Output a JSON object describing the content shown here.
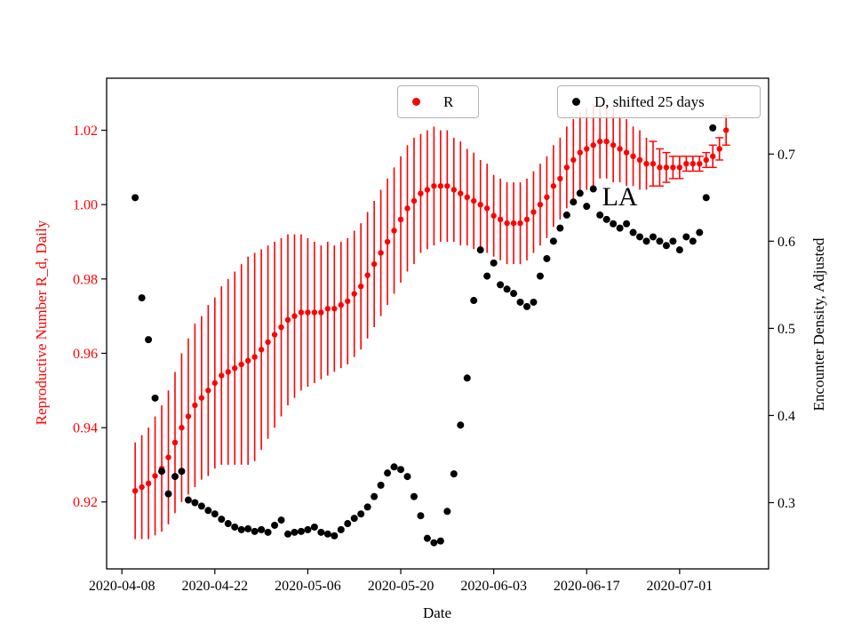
{
  "figure": {
    "background": "#ffffff"
  },
  "annotation_note": "LA",
  "chart_data": {
    "type": "scatter",
    "title": "",
    "xlabel": "Date",
    "grid": false,
    "x_tick_labels": [
      "2020-04-08",
      "2020-04-22",
      "2020-05-06",
      "2020-05-20",
      "2020-06-03",
      "2020-06-17",
      "2020-07-01"
    ],
    "x_tick_days": [
      0,
      14,
      28,
      42,
      56,
      70,
      84
    ],
    "x_range_days": [
      -2.3,
      97.4
    ],
    "left_axis": {
      "label": "Reproductive Number R_d, Daily",
      "color": "#ff0000",
      "tick_labels": [
        "0.92",
        "0.94",
        "0.96",
        "0.98",
        "1.00",
        "1.02"
      ],
      "tick_values": [
        0.92,
        0.94,
        0.96,
        0.98,
        1.0,
        1.02
      ],
      "range": [
        0.902,
        1.034
      ]
    },
    "right_axis": {
      "label": "Encounter Density, Adjusted",
      "color": "#000000",
      "tick_labels": [
        "0.3",
        "0.4",
        "0.5",
        "0.6",
        "0.7"
      ],
      "tick_values": [
        0.3,
        0.4,
        0.5,
        0.6,
        0.7
      ],
      "range": [
        0.224,
        0.787
      ]
    },
    "legend_position": "upper center, two separate frames",
    "series": [
      {
        "name": "R",
        "axis": "left",
        "color": "#ff0000",
        "marker": "circle",
        "x_start_day": 2,
        "values": [
          0.923,
          0.924,
          0.925,
          0.927,
          0.929,
          0.932,
          0.936,
          0.94,
          0.943,
          0.946,
          0.948,
          0.95,
          0.952,
          0.954,
          0.955,
          0.956,
          0.957,
          0.958,
          0.959,
          0.961,
          0.963,
          0.965,
          0.967,
          0.969,
          0.97,
          0.971,
          0.971,
          0.971,
          0.971,
          0.972,
          0.972,
          0.973,
          0.974,
          0.976,
          0.978,
          0.981,
          0.984,
          0.987,
          0.99,
          0.993,
          0.996,
          0.999,
          1.001,
          1.003,
          1.004,
          1.005,
          1.005,
          1.005,
          1.004,
          1.003,
          1.002,
          1.001,
          1.0,
          0.999,
          0.997,
          0.996,
          0.995,
          0.995,
          0.995,
          0.996,
          0.998,
          1.0,
          1.002,
          1.005,
          1.007,
          1.01,
          1.012,
          1.014,
          1.015,
          1.016,
          1.017,
          1.017,
          1.016,
          1.015,
          1.014,
          1.013,
          1.012,
          1.011,
          1.011,
          1.01,
          1.01,
          1.01,
          1.01,
          1.011,
          1.011,
          1.011,
          1.012,
          1.013,
          1.015,
          1.02
        ],
        "yerr": [
          0.013,
          0.014,
          0.015,
          0.016,
          0.017,
          0.018,
          0.019,
          0.02,
          0.021,
          0.022,
          0.022,
          0.023,
          0.023,
          0.024,
          0.025,
          0.026,
          0.027,
          0.028,
          0.028,
          0.027,
          0.026,
          0.025,
          0.024,
          0.023,
          0.022,
          0.021,
          0.02,
          0.019,
          0.018,
          0.018,
          0.017,
          0.017,
          0.017,
          0.017,
          0.017,
          0.017,
          0.017,
          0.017,
          0.017,
          0.017,
          0.017,
          0.017,
          0.017,
          0.016,
          0.016,
          0.016,
          0.015,
          0.015,
          0.014,
          0.014,
          0.013,
          0.013,
          0.012,
          0.012,
          0.011,
          0.011,
          0.011,
          0.011,
          0.011,
          0.011,
          0.011,
          0.011,
          0.011,
          0.011,
          0.011,
          0.011,
          0.011,
          0.011,
          0.011,
          0.011,
          0.01,
          0.01,
          0.01,
          0.009,
          0.009,
          0.008,
          0.008,
          0.007,
          0.006,
          0.005,
          0.004,
          0.003,
          0.003,
          0.002,
          0.002,
          0.002,
          0.002,
          0.003,
          0.003,
          0.004
        ]
      },
      {
        "name": "D, shifted 25 days",
        "axis": "right",
        "color": "#000000",
        "marker": "circle",
        "x_start_day": 2,
        "values": [
          0.65,
          0.535,
          0.487,
          0.42,
          0.336,
          0.31,
          0.33,
          0.336,
          0.303,
          0.3,
          0.296,
          0.291,
          0.287,
          0.281,
          0.276,
          0.272,
          0.269,
          0.27,
          0.267,
          0.269,
          0.266,
          0.274,
          0.28,
          0.264,
          0.266,
          0.267,
          0.269,
          0.272,
          0.266,
          0.264,
          0.262,
          0.269,
          0.276,
          0.282,
          0.287,
          0.295,
          0.307,
          0.32,
          0.334,
          0.341,
          0.338,
          0.33,
          0.307,
          0.285,
          0.259,
          0.254,
          0.256,
          0.29,
          0.333,
          0.389,
          0.443,
          0.532,
          0.59,
          0.56,
          0.575,
          0.55,
          0.545,
          0.54,
          0.53,
          0.525,
          0.53,
          0.56,
          0.58,
          0.6,
          0.615,
          0.63,
          0.645,
          0.655,
          0.64,
          0.66,
          0.63,
          0.625,
          0.62,
          0.615,
          0.62,
          0.61,
          0.605,
          0.6,
          0.605,
          0.6,
          0.595,
          0.6,
          0.59,
          0.605,
          0.6,
          0.61,
          0.65,
          0.73
        ]
      }
    ],
    "annotation": {
      "text": "LA",
      "x_day": 75,
      "y_left": 1.002
    }
  }
}
